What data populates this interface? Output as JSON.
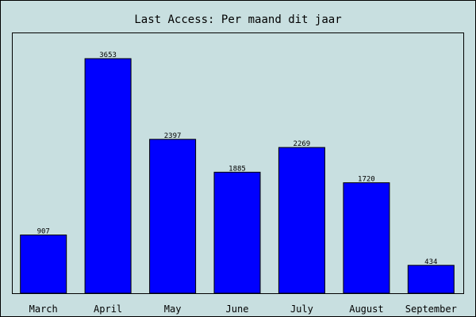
{
  "chart_data": {
    "type": "bar",
    "title": "Last Access: Per maand dit jaar",
    "xlabel": "",
    "ylabel": "",
    "categories": [
      "March",
      "April",
      "May",
      "June",
      "July",
      "August",
      "September"
    ],
    "values": [
      907,
      3653,
      2397,
      1885,
      2269,
      1720,
      434
    ],
    "data_labels": [
      "907",
      "3653",
      "2397",
      "1885",
      "2269",
      "1720",
      "434"
    ],
    "ylim": [
      0,
      3653
    ],
    "grid": false,
    "legend": "none",
    "colors": {
      "background": "#c8dfe0",
      "bar_fill": "#0000ff",
      "bar_stroke": "#000000",
      "text": "#000000",
      "frame": "#000000"
    }
  }
}
